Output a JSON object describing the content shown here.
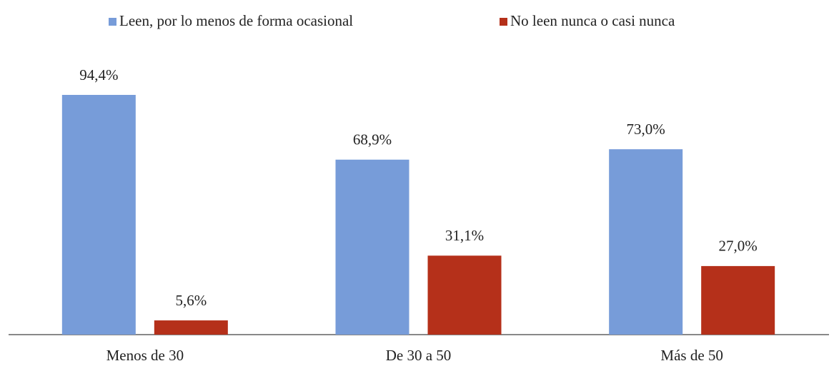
{
  "chart_data": {
    "type": "bar",
    "categories": [
      "Menos de 30",
      "De 30 a 50",
      "Más de 50"
    ],
    "series": [
      {
        "name": "Leen, por lo menos de forma ocasional",
        "color": "#779cd9",
        "values": [
          94.4,
          68.9,
          73.0
        ],
        "value_labels": [
          "94,4%",
          "68,9%",
          "73,0%"
        ]
      },
      {
        "name": "No leen nunca o casi nunca",
        "color": "#b5301a",
        "values": [
          5.6,
          31.1,
          27.0
        ],
        "value_labels": [
          "5,6%",
          "31,1%",
          "27,0%"
        ]
      }
    ],
    "legend": "top"
  }
}
